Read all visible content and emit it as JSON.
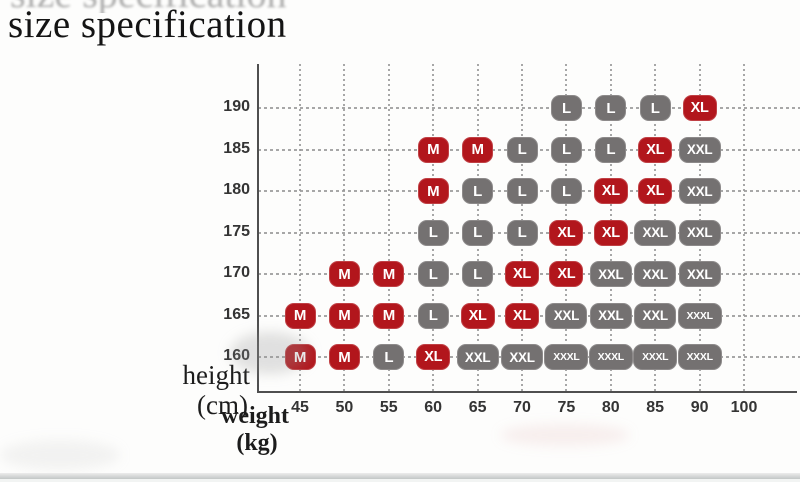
{
  "title": "size specification",
  "axes": {
    "y_label_line1": "height",
    "y_label_line2": "(cm)",
    "x_label_line1": "weight",
    "x_label_line2": "(kg)"
  },
  "colors": {
    "badge_red": "#b2161c",
    "badge_gray": "#747171",
    "badge_text": "#ffffff",
    "grid": "#989898",
    "axis": "#4f4f4f",
    "tick_text": "#343434"
  },
  "chart_data": {
    "type": "heatmap",
    "title": "size specification",
    "xlabel": "weight (kg)",
    "ylabel": "height (cm)",
    "x_categories": [
      "45",
      "50",
      "55",
      "60",
      "65",
      "70",
      "75",
      "80",
      "85",
      "90",
      "100"
    ],
    "y_categories": [
      "190",
      "185",
      "180",
      "175",
      "170",
      "165",
      "160"
    ],
    "grid": "dotted",
    "legend_position": "none",
    "value_colors": {
      "M": "red",
      "L": "gray",
      "XL": "red",
      "XXL": "gray",
      "XXXL": "gray"
    },
    "rows": [
      {
        "height": "190",
        "cells": [
          {
            "weight": "75",
            "size": "L",
            "color": "gray"
          },
          {
            "weight": "80",
            "size": "L",
            "color": "gray"
          },
          {
            "weight": "85",
            "size": "L",
            "color": "gray"
          },
          {
            "weight": "90",
            "size": "XL",
            "color": "red"
          }
        ]
      },
      {
        "height": "185",
        "cells": [
          {
            "weight": "60",
            "size": "M",
            "color": "red"
          },
          {
            "weight": "65",
            "size": "M",
            "color": "red"
          },
          {
            "weight": "70",
            "size": "L",
            "color": "gray"
          },
          {
            "weight": "75",
            "size": "L",
            "color": "gray"
          },
          {
            "weight": "80",
            "size": "L",
            "color": "gray"
          },
          {
            "weight": "85",
            "size": "XL",
            "color": "red"
          },
          {
            "weight": "90",
            "size": "XXL",
            "color": "gray"
          }
        ]
      },
      {
        "height": "180",
        "cells": [
          {
            "weight": "60",
            "size": "M",
            "color": "red"
          },
          {
            "weight": "65",
            "size": "L",
            "color": "gray"
          },
          {
            "weight": "70",
            "size": "L",
            "color": "gray"
          },
          {
            "weight": "75",
            "size": "L",
            "color": "gray"
          },
          {
            "weight": "80",
            "size": "XL",
            "color": "red"
          },
          {
            "weight": "85",
            "size": "XL",
            "color": "red"
          },
          {
            "weight": "90",
            "size": "XXL",
            "color": "gray"
          }
        ]
      },
      {
        "height": "175",
        "cells": [
          {
            "weight": "60",
            "size": "L",
            "color": "gray"
          },
          {
            "weight": "65",
            "size": "L",
            "color": "gray"
          },
          {
            "weight": "70",
            "size": "L",
            "color": "gray"
          },
          {
            "weight": "75",
            "size": "XL",
            "color": "red"
          },
          {
            "weight": "80",
            "size": "XL",
            "color": "red"
          },
          {
            "weight": "85",
            "size": "XXL",
            "color": "gray"
          },
          {
            "weight": "90",
            "size": "XXL",
            "color": "gray"
          }
        ]
      },
      {
        "height": "170",
        "cells": [
          {
            "weight": "50",
            "size": "M",
            "color": "red"
          },
          {
            "weight": "55",
            "size": "M",
            "color": "red"
          },
          {
            "weight": "60",
            "size": "L",
            "color": "gray"
          },
          {
            "weight": "65",
            "size": "L",
            "color": "gray"
          },
          {
            "weight": "70",
            "size": "XL",
            "color": "red"
          },
          {
            "weight": "75",
            "size": "XL",
            "color": "red"
          },
          {
            "weight": "80",
            "size": "XXL",
            "color": "gray"
          },
          {
            "weight": "85",
            "size": "XXL",
            "color": "gray"
          },
          {
            "weight": "90",
            "size": "XXL",
            "color": "gray"
          }
        ]
      },
      {
        "height": "165",
        "cells": [
          {
            "weight": "45",
            "size": "M",
            "color": "red"
          },
          {
            "weight": "50",
            "size": "M",
            "color": "red"
          },
          {
            "weight": "55",
            "size": "M",
            "color": "red"
          },
          {
            "weight": "60",
            "size": "L",
            "color": "gray"
          },
          {
            "weight": "65",
            "size": "XL",
            "color": "red"
          },
          {
            "weight": "70",
            "size": "XL",
            "color": "red"
          },
          {
            "weight": "75",
            "size": "XXL",
            "color": "gray"
          },
          {
            "weight": "80",
            "size": "XXL",
            "color": "gray"
          },
          {
            "weight": "85",
            "size": "XXL",
            "color": "gray"
          },
          {
            "weight": "90",
            "size": "XXXL",
            "color": "gray"
          }
        ]
      },
      {
        "height": "160",
        "cells": [
          {
            "weight": "45",
            "size": "M",
            "color": "red"
          },
          {
            "weight": "50",
            "size": "M",
            "color": "red"
          },
          {
            "weight": "55",
            "size": "L",
            "color": "gray"
          },
          {
            "weight": "60",
            "size": "XL",
            "color": "red"
          },
          {
            "weight": "65",
            "size": "XXL",
            "color": "gray"
          },
          {
            "weight": "70",
            "size": "XXL",
            "color": "gray"
          },
          {
            "weight": "75",
            "size": "XXXL",
            "color": "gray"
          },
          {
            "weight": "80",
            "size": "XXXL",
            "color": "gray"
          },
          {
            "weight": "85",
            "size": "XXXL",
            "color": "gray"
          },
          {
            "weight": "90",
            "size": "XXXL",
            "color": "gray"
          }
        ]
      }
    ]
  }
}
